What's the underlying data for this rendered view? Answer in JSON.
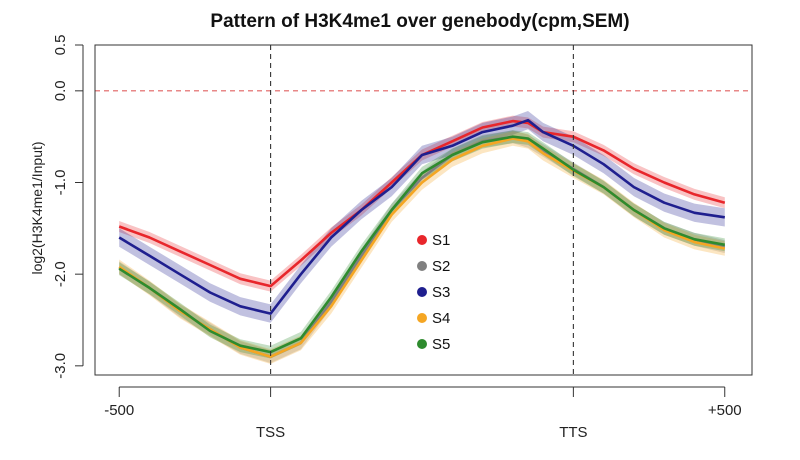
{
  "chart_data": {
    "type": "line",
    "title": "Pattern of H3K4me1 over genebody(cpm,SEM)",
    "ylabel": "log2(H3K4me1/Input)",
    "xlabel": "",
    "x_ticks": [
      "-500",
      "TSS",
      "TTS",
      "+500"
    ],
    "x_tick_positions": [
      -500,
      0,
      1000,
      1500
    ],
    "xlim": [
      -580,
      1590
    ],
    "y_ticks": [
      "0.5",
      "0.0",
      "-1.0",
      "-2.0",
      "-3.0"
    ],
    "y_tick_values": [
      0.5,
      0.0,
      -1.0,
      -2.0,
      -3.0
    ],
    "ylim": [
      -3.1,
      0.5
    ],
    "reference_lines": {
      "horizontal": [
        {
          "y": 0.0,
          "style": "dashed",
          "color": "#e06060"
        }
      ],
      "vertical": [
        {
          "x": 0,
          "style": "dashed",
          "color": "#333333"
        },
        {
          "x": 1000,
          "style": "dashed",
          "color": "#333333"
        }
      ]
    },
    "x": [
      -500,
      -400,
      -300,
      -200,
      -100,
      0,
      100,
      200,
      300,
      400,
      500,
      600,
      700,
      800,
      850,
      900,
      1000,
      1100,
      1200,
      1300,
      1400,
      1500
    ],
    "series": [
      {
        "name": "S1",
        "color": "#e8262b",
        "band": 0.06,
        "values": [
          -1.48,
          -1.6,
          -1.75,
          -1.9,
          -2.05,
          -2.13,
          -1.85,
          -1.55,
          -1.3,
          -1.0,
          -0.7,
          -0.55,
          -0.4,
          -0.33,
          -0.35,
          -0.45,
          -0.5,
          -0.65,
          -0.85,
          -1.0,
          -1.13,
          -1.22
        ]
      },
      {
        "name": "S2",
        "color": "#808080",
        "band": 0.07,
        "values": [
          -1.93,
          -2.15,
          -2.4,
          -2.6,
          -2.8,
          -2.9,
          -2.75,
          -2.3,
          -1.8,
          -1.3,
          -0.95,
          -0.7,
          -0.55,
          -0.5,
          -0.55,
          -0.65,
          -0.85,
          -1.05,
          -1.3,
          -1.5,
          -1.62,
          -1.7
        ]
      },
      {
        "name": "S3",
        "color": "#1f1f8f",
        "band": 0.1,
        "values": [
          -1.6,
          -1.8,
          -2.0,
          -2.2,
          -2.35,
          -2.43,
          -2.0,
          -1.6,
          -1.3,
          -1.05,
          -0.7,
          -0.6,
          -0.45,
          -0.38,
          -0.32,
          -0.45,
          -0.6,
          -0.8,
          -1.05,
          -1.22,
          -1.33,
          -1.38
        ]
      },
      {
        "name": "S4",
        "color": "#f5a623",
        "band": 0.08,
        "values": [
          -1.92,
          -2.15,
          -2.4,
          -2.6,
          -2.8,
          -2.9,
          -2.75,
          -2.35,
          -1.85,
          -1.35,
          -1.0,
          -0.75,
          -0.6,
          -0.52,
          -0.55,
          -0.68,
          -0.87,
          -1.05,
          -1.3,
          -1.52,
          -1.65,
          -1.72
        ]
      },
      {
        "name": "S5",
        "color": "#2e8b2e",
        "band": 0.07,
        "values": [
          -1.94,
          -2.15,
          -2.38,
          -2.62,
          -2.78,
          -2.85,
          -2.7,
          -2.25,
          -1.75,
          -1.3,
          -0.9,
          -0.7,
          -0.56,
          -0.5,
          -0.52,
          -0.63,
          -0.86,
          -1.05,
          -1.3,
          -1.5,
          -1.62,
          -1.68
        ]
      }
    ],
    "legend": {
      "placement": "center",
      "entries": [
        "S1",
        "S2",
        "S3",
        "S4",
        "S5"
      ]
    }
  }
}
